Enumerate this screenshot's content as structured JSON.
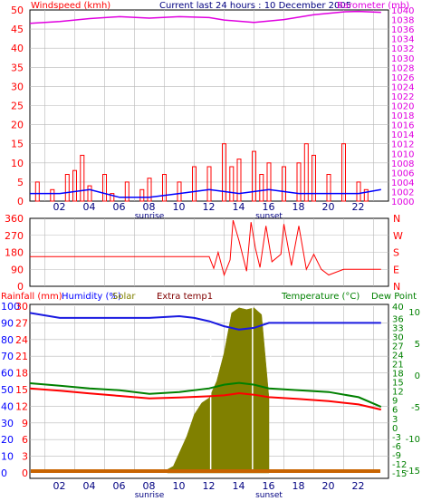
{
  "header": {
    "left_label": "Windspeed (kmh)",
    "center_title": "Current last 24 hours : 10 December 2005",
    "right_label": "Barometer (mb)"
  },
  "bottom_header": {
    "rainfall": "Rainfall (mm)",
    "humidity": "Humidity (%)",
    "solar": "Solar",
    "extra": "Extra temp1",
    "temperature": "Temperature (°C)",
    "dewpoint": "Dew Point"
  },
  "x_axis": {
    "ticks": [
      "02",
      "04",
      "06",
      "08",
      "10",
      "12",
      "14",
      "16",
      "18",
      "20",
      "22"
    ],
    "markers": [
      "sunrise",
      "sunset"
    ]
  },
  "colors": {
    "wind_red": "#ff0000",
    "baro_magenta": "#e000e0",
    "avg_blue": "#0000ff",
    "humidity_blue": "#1a1ae0",
    "temp_red": "#ff0000",
    "dew_green": "#008000",
    "solar_olive": "#808000",
    "grid": "#b8b8b8"
  },
  "chart_data": [
    {
      "type": "bar",
      "title": "Current last 24 hours : 10 December 2005",
      "xlabel": "",
      "ylabel": "Windspeed (kmh)",
      "ylabel_right": "Barometer (mb)",
      "xlim": [
        0,
        24
      ],
      "ylim": [
        0,
        50
      ],
      "ylim_right": [
        1000,
        1040
      ],
      "yticks": [
        0,
        5,
        10,
        15,
        20,
        25,
        30,
        35,
        40,
        45,
        50
      ],
      "yticks_right": [
        1000,
        1002,
        1004,
        1006,
        1008,
        1010,
        1012,
        1014,
        1016,
        1018,
        1020,
        1022,
        1024,
        1026,
        1028,
        1030,
        1032,
        1034,
        1036,
        1038,
        1040
      ],
      "series": [
        {
          "name": "Windspeed (kmh)",
          "x": [
            0.5,
            1.5,
            2.5,
            3.0,
            3.5,
            4.0,
            5.0,
            5.5,
            6.5,
            7.5,
            8.0,
            9.0,
            10.0,
            11.0,
            12.0,
            13.0,
            13.5,
            14.0,
            15.0,
            15.5,
            16.0,
            17.0,
            18.0,
            18.5,
            19.0,
            20.0,
            21.0,
            22.0,
            22.5
          ],
          "values": [
            5,
            3,
            7,
            8,
            12,
            4,
            7,
            2,
            5,
            3,
            6,
            7,
            5,
            9,
            9,
            15,
            9,
            11,
            13,
            7,
            10,
            9,
            10,
            15,
            12,
            7,
            15,
            5,
            3
          ]
        },
        {
          "name": "Average wind",
          "x": [
            0,
            2,
            4,
            6,
            8,
            10,
            12,
            14,
            16,
            18,
            20,
            22,
            23.5
          ],
          "values": [
            2,
            2,
            3,
            1,
            1,
            2,
            3,
            2,
            3,
            2,
            2,
            2,
            3
          ]
        },
        {
          "name": "Barometer (mb)",
          "axis": "right",
          "x": [
            0,
            2,
            4,
            6,
            8,
            10,
            12,
            13,
            15,
            17,
            19,
            21,
            22,
            23.5
          ],
          "values": [
            1037.2,
            1037.6,
            1038.2,
            1038.6,
            1038.3,
            1038.6,
            1038.4,
            1037.9,
            1037.4,
            1038.0,
            1039.0,
            1039.6,
            1039.7,
            1039.5
          ]
        }
      ]
    },
    {
      "type": "line",
      "title": "",
      "ylabel": "Wind direction",
      "xlim": [
        0,
        24
      ],
      "ylim": [
        0,
        360
      ],
      "yticks": [
        0,
        90,
        180,
        270,
        360
      ],
      "yticks_right": [
        "N",
        "E",
        "S",
        "W",
        "N"
      ],
      "series": [
        {
          "name": "",
          "x": [
            0,
            6,
            12,
            12.3,
            12.6,
            13.0,
            13.4,
            13.6,
            14.0,
            14.5,
            14.8,
            15.1,
            15.4,
            15.8,
            16.2,
            16.8,
            17.0,
            17.5,
            18.0,
            18.5,
            19.0,
            19.5,
            20.0,
            21.0,
            22.0,
            23.5
          ],
          "values": [
            157,
            157,
            157,
            95,
            180,
            60,
            140,
            350,
            240,
            80,
            340,
            200,
            100,
            320,
            130,
            170,
            330,
            110,
            320,
            90,
            170,
            90,
            60,
            90,
            90,
            90
          ]
        }
      ]
    },
    {
      "type": "line",
      "title": "",
      "xlabel": "",
      "ylabel": "Rainfall (mm)",
      "xlim": [
        0,
        24
      ],
      "ylim": [
        0,
        100
      ],
      "yticks": [
        0,
        10,
        20,
        30,
        40,
        50,
        60,
        70,
        80,
        90,
        100
      ],
      "yticks_rain": [
        0,
        3,
        6,
        9,
        12,
        15,
        18,
        21,
        24,
        27,
        30
      ],
      "yticks_temp_c": [
        -15,
        -12,
        -9,
        -6,
        -3,
        0,
        3,
        6,
        9,
        12,
        15,
        18,
        21,
        24,
        27,
        30,
        33,
        36,
        40
      ],
      "yticks_temp_f": [
        -15,
        -10,
        -5,
        0,
        5,
        10
      ],
      "series": [
        {
          "name": "Humidity (%)",
          "x": [
            0,
            2,
            4,
            6,
            8,
            10,
            11,
            12,
            13,
            14,
            15,
            16,
            18,
            20,
            22,
            23.5
          ],
          "values": [
            96,
            93,
            93,
            93,
            93,
            94,
            93,
            91,
            88,
            86,
            87,
            90,
            90,
            90,
            90,
            90
          ]
        },
        {
          "name": "Temperature (°C)",
          "x": [
            0,
            2,
            4,
            6,
            8,
            10,
            12,
            13,
            14,
            15,
            16,
            18,
            20,
            22,
            23.5
          ],
          "values": [
            12.9,
            12.1,
            11.2,
            10.4,
            9.6,
            9.9,
            10.3,
            10.6,
            11.3,
            10.8,
            10.0,
            9.4,
            8.7,
            7.6,
            5.9
          ]
        },
        {
          "name": "Dew Point",
          "x": [
            0,
            2,
            4,
            6,
            8,
            10,
            12,
            13,
            14,
            15,
            16,
            18,
            20,
            22,
            23.5
          ],
          "values": [
            14.6,
            13.8,
            12.9,
            12.3,
            11.1,
            11.7,
            12.9,
            14.1,
            14.7,
            14.1,
            12.9,
            12.3,
            11.7,
            10.0,
            6.8
          ]
        },
        {
          "name": "Solar",
          "x": [
            9.2,
            9.6,
            10.0,
            10.5,
            11.0,
            11.5,
            12.0,
            12.5,
            13.0,
            13.5,
            14.0,
            14.5,
            15.0,
            15.5,
            16.0
          ],
          "values": [
            2,
            4,
            12,
            22,
            35,
            42,
            45,
            55,
            72,
            96,
            99,
            98,
            99,
            95,
            45
          ]
        },
        {
          "name": "Rainfall (mm)",
          "x": [
            0,
            23.5
          ],
          "values": [
            0.8,
            0.8
          ]
        }
      ]
    }
  ]
}
